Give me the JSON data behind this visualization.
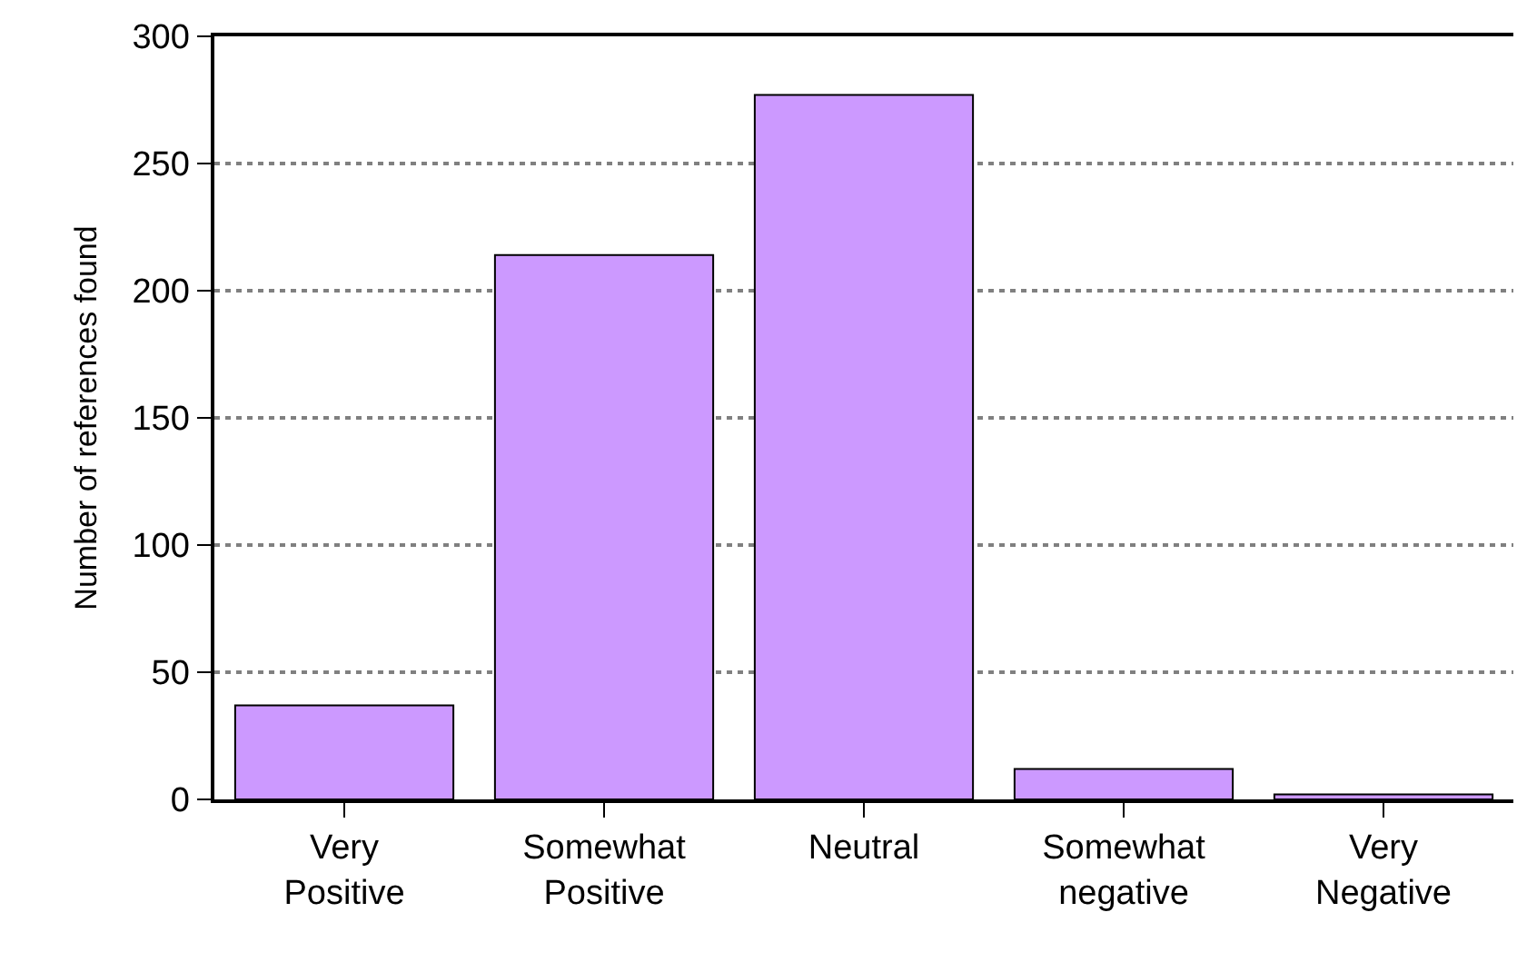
{
  "chart_data": {
    "type": "bar",
    "ylabel": "Number of references found",
    "categories": [
      "Very Positive",
      "Somewhat Positive",
      "Neutral",
      "Somewhat negative",
      "Very Negative"
    ],
    "values": [
      37,
      214,
      277,
      12,
      2
    ],
    "color": "#cc99ff",
    "ylim": [
      0,
      300
    ],
    "yticks": [
      0,
      50,
      100,
      150,
      200,
      250,
      300
    ],
    "grid": "y"
  }
}
